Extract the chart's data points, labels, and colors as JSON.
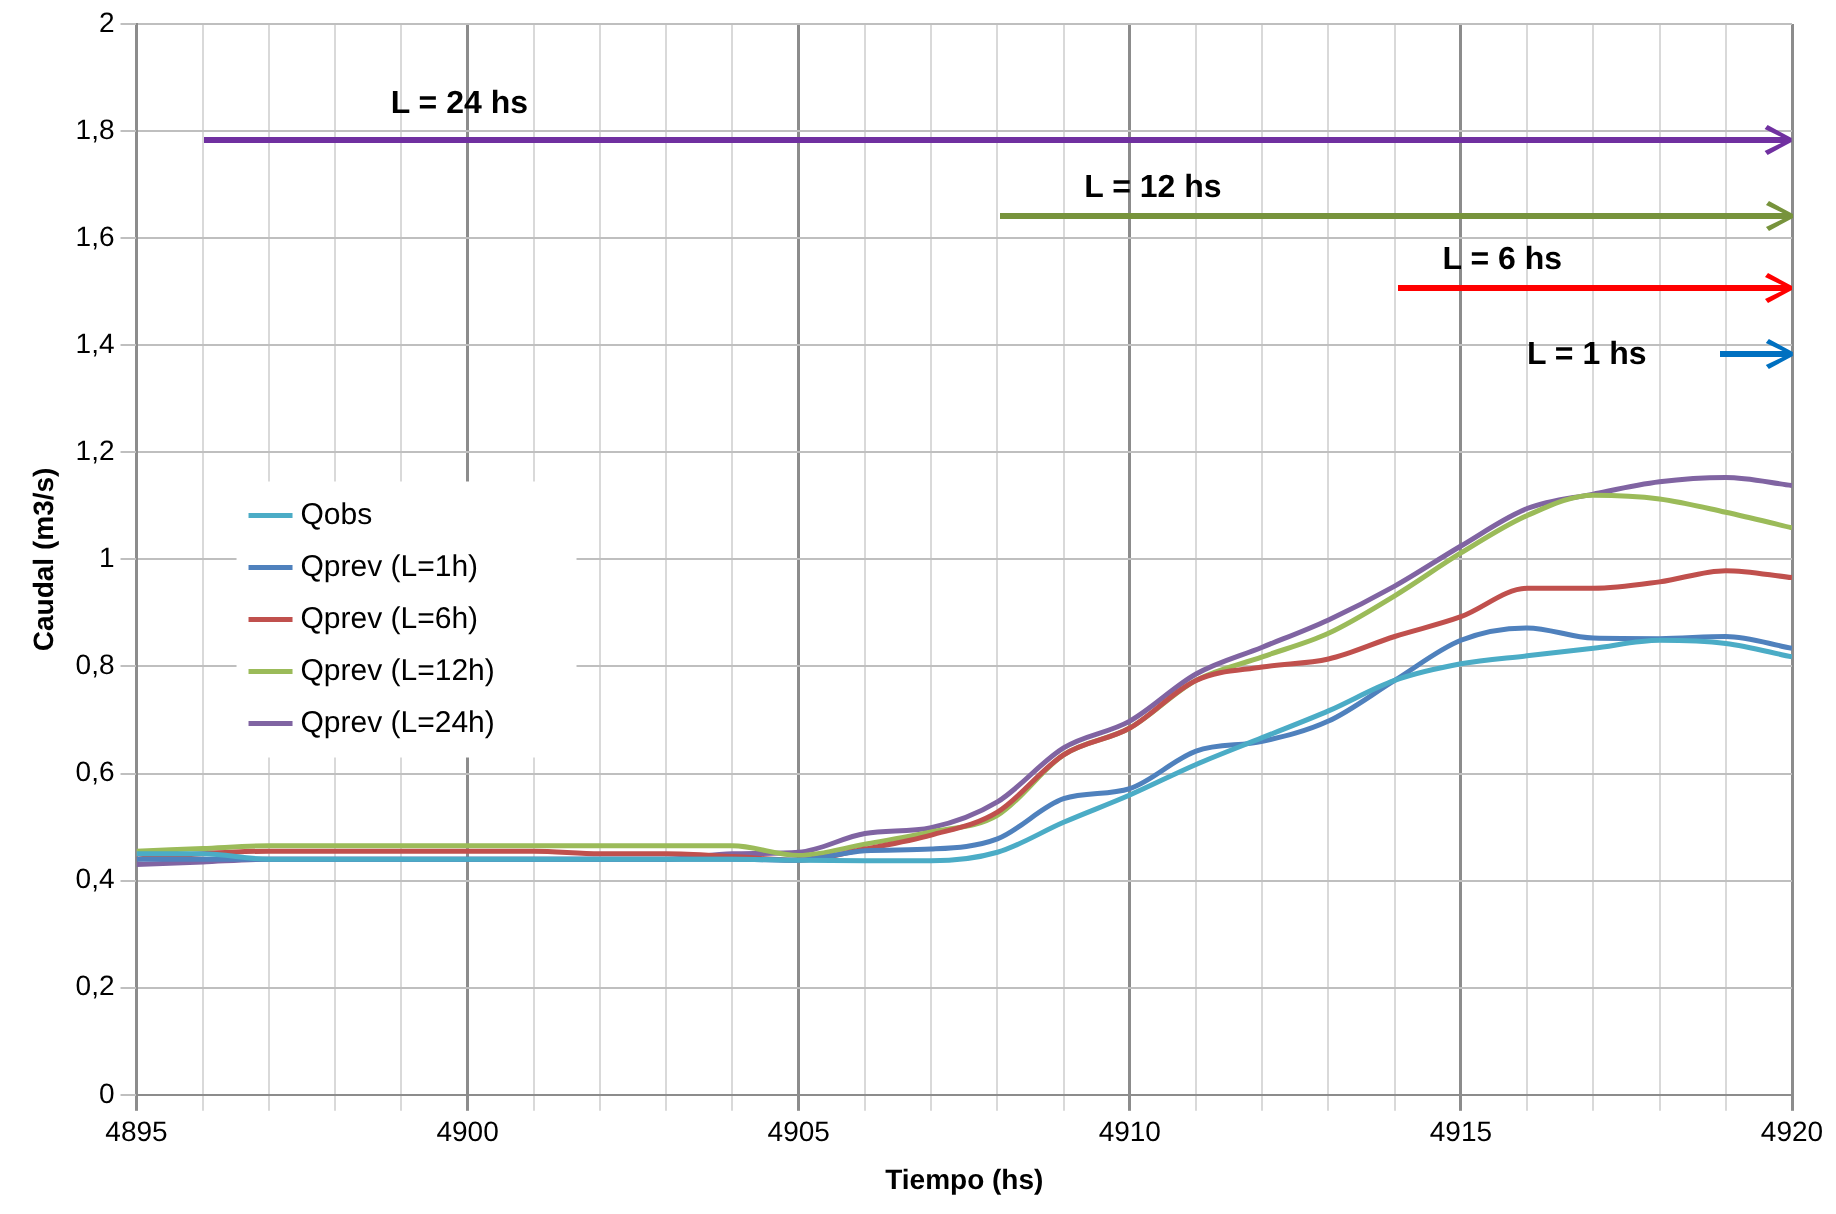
{
  "chart_data": {
    "type": "line",
    "xlabel": "Tiempo (hs)",
    "ylabel": "Caudal (m3/s)",
    "x": [
      4895,
      4896,
      4897,
      4898,
      4899,
      4900,
      4901,
      4902,
      4903,
      4904,
      4905,
      4906,
      4907,
      4908,
      4909,
      4910,
      4911,
      4912,
      4913,
      4914,
      4915,
      4916,
      4917,
      4918,
      4919,
      4920
    ],
    "series": [
      {
        "name": "Qobs",
        "color": "#4bacc6",
        "values": [
          0.45,
          0.45,
          0.44,
          0.44,
          0.44,
          0.44,
          0.44,
          0.44,
          0.44,
          0.44,
          0.438,
          0.437,
          0.437,
          0.453,
          0.509,
          0.56,
          0.617,
          0.667,
          0.717,
          0.774,
          0.805,
          0.82,
          0.834,
          0.849,
          0.843,
          0.818
        ]
      },
      {
        "name": "Qprev (L=1h)",
        "color": "#4f81bd",
        "values": [
          0.44,
          0.44,
          0.44,
          0.44,
          0.44,
          0.44,
          0.44,
          0.44,
          0.44,
          0.44,
          0.438,
          0.456,
          0.459,
          0.478,
          0.553,
          0.572,
          0.642,
          0.66,
          0.698,
          0.774,
          0.849,
          0.872,
          0.853,
          0.852,
          0.856,
          0.834
        ]
      },
      {
        "name": "Qprev (L=6h)",
        "color": "#c0504d",
        "values": [
          0.44,
          0.45,
          0.455,
          0.455,
          0.455,
          0.455,
          0.455,
          0.45,
          0.45,
          0.445,
          0.438,
          0.459,
          0.485,
          0.528,
          0.635,
          0.685,
          0.774,
          0.799,
          0.814,
          0.856,
          0.893,
          0.946,
          0.946,
          0.958,
          0.979,
          0.966
        ]
      },
      {
        "name": "Qprev (L=12h)",
        "color": "#9bbb59",
        "values": [
          0.455,
          0.46,
          0.465,
          0.465,
          0.465,
          0.465,
          0.465,
          0.465,
          0.465,
          0.465,
          0.447,
          0.468,
          0.491,
          0.522,
          0.635,
          0.685,
          0.774,
          0.818,
          0.862,
          0.932,
          1.012,
          1.082,
          1.12,
          1.113,
          1.088,
          1.059
        ]
      },
      {
        "name": "Qprev (L=24h)",
        "color": "#8064a2",
        "values": [
          0.43,
          0.435,
          0.44,
          0.44,
          0.44,
          0.44,
          0.44,
          0.44,
          0.44,
          0.45,
          0.453,
          0.488,
          0.499,
          0.547,
          0.648,
          0.698,
          0.786,
          0.836,
          0.887,
          0.95,
          1.025,
          1.095,
          1.122,
          1.145,
          1.153,
          1.138
        ]
      }
    ],
    "annotations": [
      "L = 24 hs",
      "L = 12 hs",
      "L = 6 hs",
      "L = 1 hs"
    ],
    "xlim": [
      4895,
      4920
    ],
    "xticks": [
      4895,
      {
        "value": 4896,
        "label": null
      },
      {
        "value": 4897,
        "label": null
      },
      {
        "value": 4898,
        "label": null
      },
      {
        "value": 4899,
        "label": null
      },
      4900,
      {
        "value": 4901,
        "label": null
      },
      {
        "value": 4902,
        "label": null
      },
      {
        "value": 4903,
        "label": null
      },
      {
        "value": 4904,
        "label": null
      },
      4905,
      {
        "value": 4906,
        "label": null
      },
      {
        "value": 4907,
        "label": null
      },
      {
        "value": 4908,
        "label": null
      },
      {
        "value": 4909,
        "label": null
      },
      4910,
      {
        "value": 4911,
        "label": null
      },
      {
        "value": 4912,
        "label": null
      },
      {
        "value": 4913,
        "label": null
      },
      {
        "value": 4914,
        "label": null
      },
      4915,
      {
        "value": 4916,
        "label": null
      },
      {
        "value": 4917,
        "label": null
      },
      {
        "value": 4918,
        "label": null
      },
      {
        "value": 4919,
        "label": null
      },
      4920
    ],
    "ylim": [
      0,
      2
    ],
    "yticks": [
      0,
      {
        "value": 0.2,
        "label": "0,2"
      },
      {
        "value": 0.4,
        "label": "0,4"
      },
      {
        "value": 0.6,
        "label": "0,6"
      },
      {
        "value": 0.8,
        "label": "0,8"
      },
      1,
      {
        "value": 1.2,
        "label": "1,2"
      },
      {
        "value": 1.4,
        "label": "1,4"
      },
      {
        "value": 1.6,
        "label": "1,6"
      },
      {
        "value": 1.8,
        "label": "1,8"
      },
      2
    ],
    "grid": true,
    "legend": "left",
    "marker": "none",
    "line_style": "solid"
  }
}
